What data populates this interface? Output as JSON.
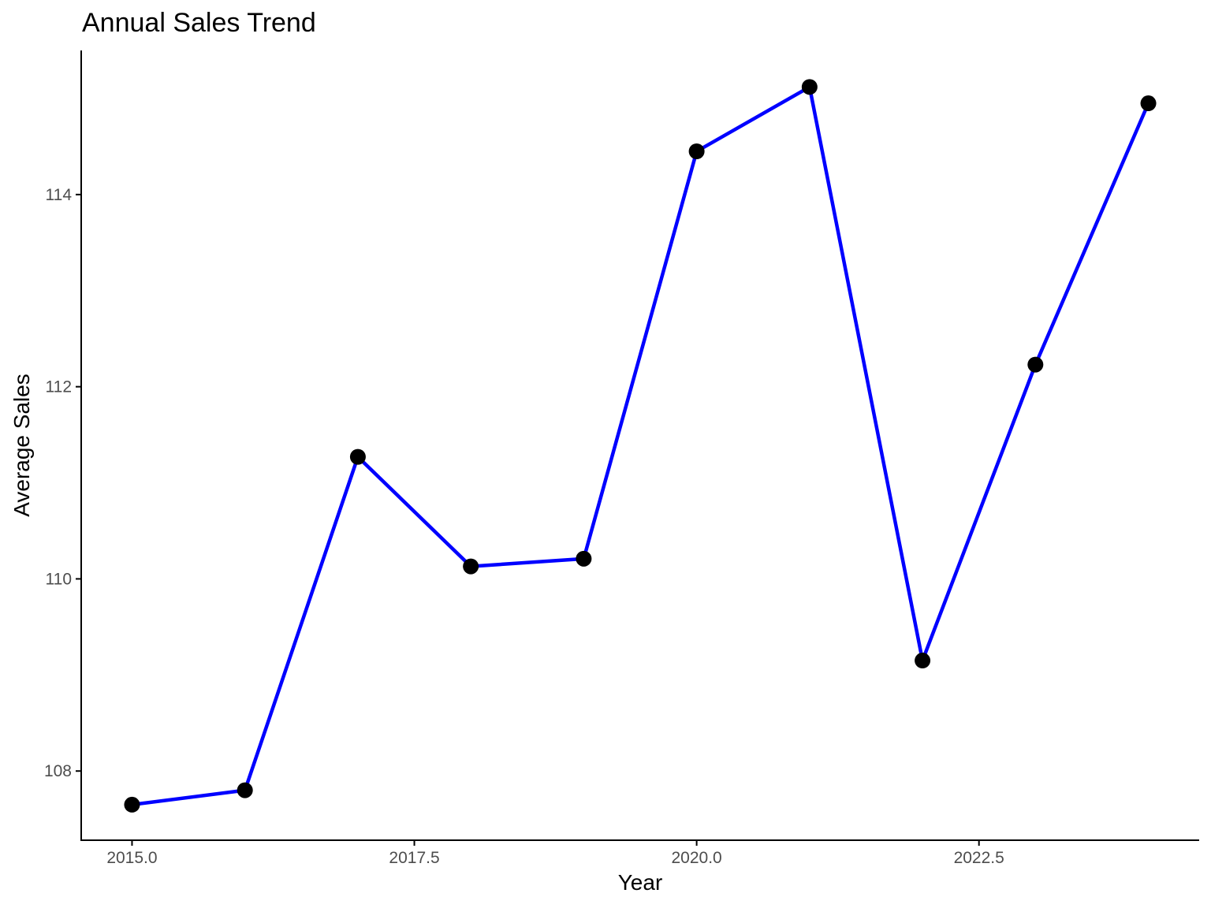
{
  "chart_data": {
    "type": "line",
    "title": "Annual Sales Trend",
    "xlabel": "Year",
    "ylabel": "Average Sales",
    "x": [
      2015,
      2016,
      2017,
      2018,
      2019,
      2020,
      2021,
      2022,
      2023,
      2024
    ],
    "series": [
      {
        "values": [
          107.65,
          107.8,
          111.27,
          110.13,
          110.21,
          114.45,
          115.12,
          109.15,
          112.23,
          114.95
        ]
      }
    ],
    "xlim": [
      2014.55,
      2024.45
    ],
    "ylim": [
      107.28,
      115.5
    ],
    "xticks": [
      2015.0,
      2017.5,
      2020.0,
      2022.5
    ],
    "xtick_labels": [
      "2015.0",
      "2017.5",
      "2020.0",
      "2022.5"
    ],
    "yticks": [
      108,
      110,
      112,
      114
    ],
    "ytick_labels": [
      "108",
      "110",
      "112",
      "114"
    ],
    "grid": false,
    "legend": "none",
    "line_color": "#0000ff",
    "marker_color": "#000000",
    "axis_color": "#000000"
  }
}
